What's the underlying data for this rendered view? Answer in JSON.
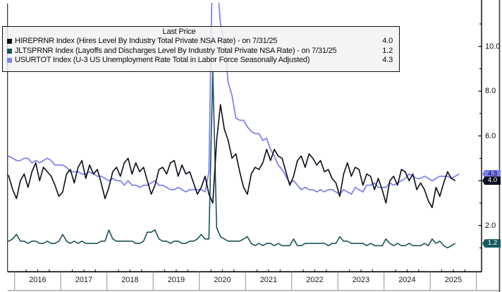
{
  "legend": {
    "title": "Last Price",
    "rows": [
      {
        "name": "HIREPRNR Index",
        "label": "HIREPRNR Index (Hires Level By Industry Total Private NSA Rate) -  on 7/31/25",
        "value": "4.0",
        "swatch": "#0b0b17"
      },
      {
        "name": "JLTSPRNR Index",
        "label": "JLTSPRNR Index (Layoffs and Discharges Level By Industry Total Private NSA Rate) -  on 7/31/25",
        "value": "1.2",
        "swatch": "#1d5257"
      },
      {
        "name": "USURTOT Index",
        "label": "USURTOT Index (U-3 US Unemployment Rate Total in Labor Force Seasonally Adjusted)",
        "value": "4.3",
        "swatch": "#8083ea"
      }
    ]
  },
  "badges": [
    {
      "label": "4.3",
      "value": 4.3,
      "bg": "#7d7fe8",
      "fg": "#00001a"
    },
    {
      "label": "4.0",
      "value": 4.0,
      "bg": "#0c0c1e",
      "fg": "#ffffff"
    },
    {
      "label": "1.2",
      "value": 1.2,
      "bg": "#17595e",
      "fg": "#ffffff"
    }
  ],
  "x_axis": {
    "years": [
      "2016",
      "2017",
      "2018",
      "2019",
      "2020",
      "2021",
      "2022",
      "2023",
      "2024",
      "2025"
    ]
  },
  "y_axis": {
    "major": [
      {
        "v": 10,
        "label": "10.0"
      },
      {
        "v": 8,
        "label": "8.0"
      },
      {
        "v": 6,
        "label": "6.0"
      },
      {
        "v": 4,
        "label": "4.0"
      },
      {
        "v": 2,
        "label": "2.0"
      }
    ],
    "minor": [
      11,
      9,
      7,
      5,
      3,
      1
    ]
  },
  "chart_data": {
    "type": "line",
    "title": "Last Price",
    "xlabel": "",
    "ylabel": "",
    "xlim": [
      2015.79,
      2026.1
    ],
    "ylim": [
      0,
      12.1
    ],
    "grid": false,
    "legend_position": "top-left",
    "x_start": 2015.7917,
    "x_step_years": 0.0833333,
    "series": [
      {
        "name": "HIREPRNR Index",
        "description": "Hires Level By Industry Total Private NSA Rate, on 7/31/25",
        "color": "#0b0b17",
        "last_value": 4.0,
        "values": [
          4.4,
          4.2,
          3.6,
          3.2,
          4.0,
          4.3,
          3.7,
          4.4,
          4.8,
          4.0,
          4.6,
          4.4,
          4.2,
          3.8,
          3.3,
          3.5,
          4.3,
          4.5,
          3.9,
          4.6,
          4.9,
          4.1,
          4.7,
          4.3,
          4.5,
          3.9,
          3.2,
          3.7,
          4.4,
          4.6,
          4.2,
          4.8,
          5.0,
          4.3,
          4.8,
          4.4,
          4.6,
          4.0,
          3.4,
          3.8,
          4.5,
          4.6,
          4.3,
          4.8,
          4.9,
          4.2,
          4.7,
          4.3,
          4.4,
          3.9,
          3.4,
          3.7,
          4.2,
          3.4,
          3.0,
          5.8,
          7.4,
          6.3,
          5.8,
          5.0,
          5.2,
          4.4,
          3.7,
          3.4,
          4.3,
          4.6,
          4.5,
          4.8,
          5.4,
          4.9,
          5.4,
          5.1,
          5.0,
          4.4,
          3.8,
          4.2,
          4.9,
          5.1,
          4.6,
          5.2,
          5.0,
          4.7,
          4.9,
          4.4,
          4.5,
          4.1,
          3.9,
          3.3,
          4.3,
          4.8,
          4.2,
          4.6,
          4.5,
          3.8,
          4.3,
          4.2,
          3.6,
          4.1,
          3.6,
          3.0,
          4.0,
          4.2,
          3.8,
          4.5,
          4.4,
          4.0,
          4.3,
          3.6,
          3.9,
          3.6,
          3.1,
          2.8,
          3.7,
          3.3,
          3.9,
          4.4,
          4.1,
          4.0
        ]
      },
      {
        "name": "JLTSPRNR Index",
        "description": "Layoffs and Discharges Level By Industry Total Private NSA Rate, on 7/31/25",
        "color": "#1d5257",
        "last_value": 1.2,
        "values": [
          1.3,
          1.3,
          1.4,
          1.6,
          1.3,
          1.3,
          1.2,
          1.3,
          1.3,
          1.2,
          1.2,
          1.3,
          1.2,
          1.2,
          1.3,
          1.6,
          1.3,
          1.2,
          1.3,
          1.2,
          1.3,
          1.2,
          1.2,
          1.2,
          1.2,
          1.3,
          1.3,
          1.8,
          1.4,
          1.3,
          1.3,
          1.3,
          1.3,
          1.3,
          1.2,
          1.2,
          1.3,
          1.7,
          1.7,
          1.8,
          1.4,
          1.3,
          1.3,
          1.2,
          1.3,
          1.3,
          1.2,
          1.2,
          1.3,
          1.3,
          1.4,
          1.6,
          1.4,
          1.4,
          8.9,
          1.9,
          1.5,
          1.4,
          1.3,
          1.3,
          1.3,
          1.3,
          1.4,
          1.5,
          1.2,
          1.1,
          1.2,
          1.1,
          1.2,
          1.2,
          1.1,
          1.2,
          1.1,
          1.1,
          1.1,
          1.4,
          1.1,
          1.1,
          1.2,
          1.2,
          1.2,
          1.2,
          1.2,
          1.2,
          1.1,
          1.2,
          1.2,
          1.5,
          1.3,
          1.3,
          1.2,
          1.2,
          1.2,
          1.2,
          1.1,
          1.2,
          1.1,
          1.1,
          1.1,
          1.4,
          1.2,
          1.1,
          1.2,
          1.1,
          1.1,
          1.2,
          1.1,
          1.1,
          1.1,
          1.2,
          1.1,
          1.4,
          1.2,
          1.3,
          1.1,
          1.0,
          1.1,
          1.2
        ]
      },
      {
        "name": "USURTOT Index",
        "description": "U-3 US Unemployment Rate Total in Labor Force Seasonally Adjusted",
        "color": "#8083ea",
        "last_value": 4.3,
        "values": [
          5.0,
          5.1,
          5.0,
          4.9,
          4.9,
          5.0,
          5.0,
          4.8,
          4.9,
          4.8,
          4.9,
          5.0,
          4.9,
          4.7,
          4.7,
          4.7,
          4.6,
          4.4,
          4.4,
          4.4,
          4.3,
          4.3,
          4.4,
          4.3,
          4.2,
          4.2,
          4.1,
          4.0,
          4.1,
          4.0,
          4.0,
          3.8,
          4.0,
          3.8,
          3.8,
          3.7,
          3.8,
          3.8,
          3.9,
          4.0,
          3.8,
          3.8,
          3.7,
          3.6,
          3.6,
          3.7,
          3.6,
          3.5,
          3.6,
          3.6,
          3.6,
          3.6,
          3.5,
          4.4,
          14.7,
          13.2,
          11.0,
          10.2,
          8.4,
          7.8,
          6.8,
          6.7,
          6.7,
          6.4,
          6.2,
          6.1,
          6.1,
          5.8,
          5.9,
          5.4,
          5.1,
          4.7,
          4.5,
          4.2,
          3.9,
          4.0,
          3.8,
          3.6,
          3.7,
          3.6,
          3.6,
          3.5,
          3.6,
          3.5,
          3.6,
          3.6,
          3.5,
          3.4,
          3.6,
          3.5,
          3.4,
          3.7,
          3.6,
          3.5,
          3.8,
          3.8,
          3.9,
          3.7,
          3.7,
          3.7,
          3.9,
          3.8,
          3.9,
          4.0,
          4.1,
          4.3,
          4.2,
          4.1,
          4.1,
          4.2,
          4.1,
          4.0,
          4.1,
          4.2,
          4.2,
          4.2,
          4.1,
          4.2,
          4.3
        ]
      }
    ]
  }
}
